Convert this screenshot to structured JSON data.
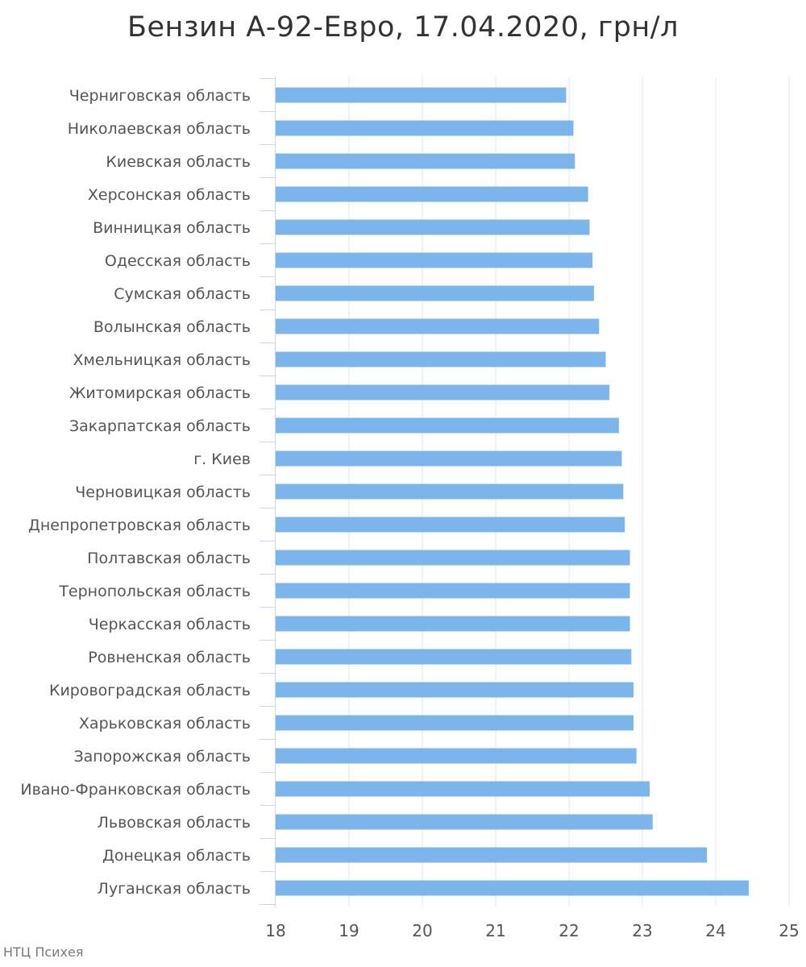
{
  "chart_data": {
    "type": "bar",
    "orientation": "horizontal",
    "title": "Бензин А-92-Евро, 17.04.2020, грн/л",
    "xlabel": "",
    "ylabel": "",
    "xlim": [
      18,
      25
    ],
    "x_ticks": [
      18,
      19,
      20,
      21,
      22,
      23,
      24,
      25
    ],
    "grid": true,
    "legend": "none",
    "bar_color": "#7cb5ec",
    "categories": [
      "Черниговская область",
      "Николаевская область",
      "Киевская область",
      "Херсонская область",
      "Винницкая область",
      "Одесская область",
      "Сумская область",
      "Волынская область",
      "Хмельницкая область",
      "Житомирская область",
      "Закарпатская область",
      "г. Киев",
      "Черновицкая область",
      "Днепропетровская область",
      "Полтавская область",
      "Тернопольская область",
      "Черкасская область",
      "Ровненская область",
      "Кировоградская область",
      "Харьковская область",
      "Запорожская область",
      "Ивано-Франковская область",
      "Львовская область",
      "Донецкая область",
      "Луганская область"
    ],
    "values": [
      21.96,
      22.06,
      22.08,
      22.26,
      22.28,
      22.32,
      22.34,
      22.41,
      22.5,
      22.55,
      22.68,
      22.72,
      22.74,
      22.76,
      22.83,
      22.83,
      22.83,
      22.85,
      22.88,
      22.88,
      22.92,
      23.1,
      23.14,
      23.88,
      24.45
    ]
  },
  "credits": "НТЦ Психея"
}
